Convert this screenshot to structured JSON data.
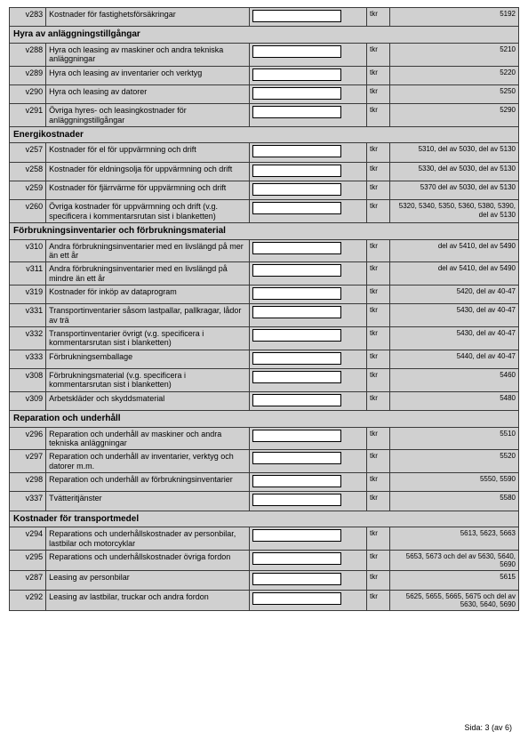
{
  "unit": "tkr",
  "footer": {
    "text": "Sida: 3 (av 6)"
  },
  "top_row": {
    "code": "v283",
    "label": "Kostnader för fastighetsförsäkringar",
    "ref": "5192"
  },
  "sections": [
    {
      "title": "Hyra av anläggningstillgångar",
      "rows": [
        {
          "code": "v288",
          "label": "Hyra och leasing av maskiner och andra tekniska anläggningar",
          "ref": "5210"
        },
        {
          "code": "v289",
          "label": "Hyra och leasing av inventarier och verktyg",
          "ref": "5220"
        },
        {
          "code": "v290",
          "label": "Hyra och leasing av datorer",
          "ref": "5250"
        },
        {
          "code": "v291",
          "label": "Övriga hyres- och leasingkostnader för anläggningstillgångar",
          "ref": "5290"
        }
      ]
    },
    {
      "title": "Energikostnader",
      "rows": [
        {
          "code": "v257",
          "label": "Kostnader för el för uppvärmning och drift",
          "ref": "5310, del av 5030, del av 5130"
        },
        {
          "code": "v258",
          "label": "Kostnader för eldningsolja för uppvärmning och drift",
          "ref": "5330, del av 5030, del av 5130"
        },
        {
          "code": "v259",
          "label": "Kostnader för fjärrvärme för uppvärmning och drift",
          "ref": "5370 del av 5030, del av 5130"
        },
        {
          "code": "v260",
          "label": "Övriga kostnader för uppvärmning och drift (v.g. specificera i kommentarsrutan sist i blanketten)",
          "ref": "5320, 5340, 5350, 5360, 5380, 5390, del av 5130"
        }
      ]
    },
    {
      "title": "Förbrukningsinventarier och förbrukningsmaterial",
      "rows": [
        {
          "code": "v310",
          "label": "Andra förbrukningsinventarier med en livslängd på mer än ett år",
          "ref": "del av 5410, del av 5490"
        },
        {
          "code": "v311",
          "label": "Andra förbrukningsinventarier med en livslängd på mindre än ett år",
          "ref": "del av 5410, del av 5490"
        },
        {
          "code": "v319",
          "label": "Kostnader för inköp av dataprogram",
          "ref": "5420, del av 40-47"
        },
        {
          "code": "v331",
          "label": "Transportinventarier såsom lastpallar, pallkragar, lådor av trä",
          "ref": "5430, del av 40-47"
        },
        {
          "code": "v332",
          "label": "Transportinventarier övrigt (v.g. specificera i kommentarsrutan sist i blanketten)",
          "ref": "5430, del av 40-47"
        },
        {
          "code": "v333",
          "label": "Förbrukningsemballage",
          "ref": "5440, del av 40-47"
        },
        {
          "code": "v308",
          "label": "Förbrukningsmaterial (v.g. specificera i kommentarsrutan sist i blanketten)",
          "ref": "5460"
        },
        {
          "code": "v309",
          "label": "Arbetskläder och skyddsmaterial",
          "ref": "5480"
        }
      ]
    },
    {
      "title": "Reparation och underhåll",
      "rows": [
        {
          "code": "v296",
          "label": "Reparation och underhåll av maskiner och andra tekniska anläggningar",
          "ref": "5510"
        },
        {
          "code": "v297",
          "label": "Reparation och underhåll av inventarier, verktyg och datorer m.m.",
          "ref": "5520"
        },
        {
          "code": "v298",
          "label": "Reparation och underhåll av förbrukningsinventarier",
          "ref": "5550, 5590"
        },
        {
          "code": "v337",
          "label": "Tvätteritjänster",
          "ref": "5580"
        }
      ]
    },
    {
      "title": "Kostnader för transportmedel",
      "rows": [
        {
          "code": "v294",
          "label": "Reparations och underhållskostnader av personbilar, lastbilar och motorcyklar",
          "ref": "5613, 5623, 5663"
        },
        {
          "code": "v295",
          "label": "Reparations och underhållskostnader övriga fordon",
          "ref": "5653, 5673 och del av 5630, 5640, 5690"
        },
        {
          "code": "v287",
          "label": "Leasing av personbilar",
          "ref": "5615"
        },
        {
          "code": "v292",
          "label": "Leasing av lastbilar, truckar och andra fordon",
          "ref": "5625, 5655, 5665, 5675 och del av 5630, 5640, 5690"
        }
      ]
    }
  ]
}
